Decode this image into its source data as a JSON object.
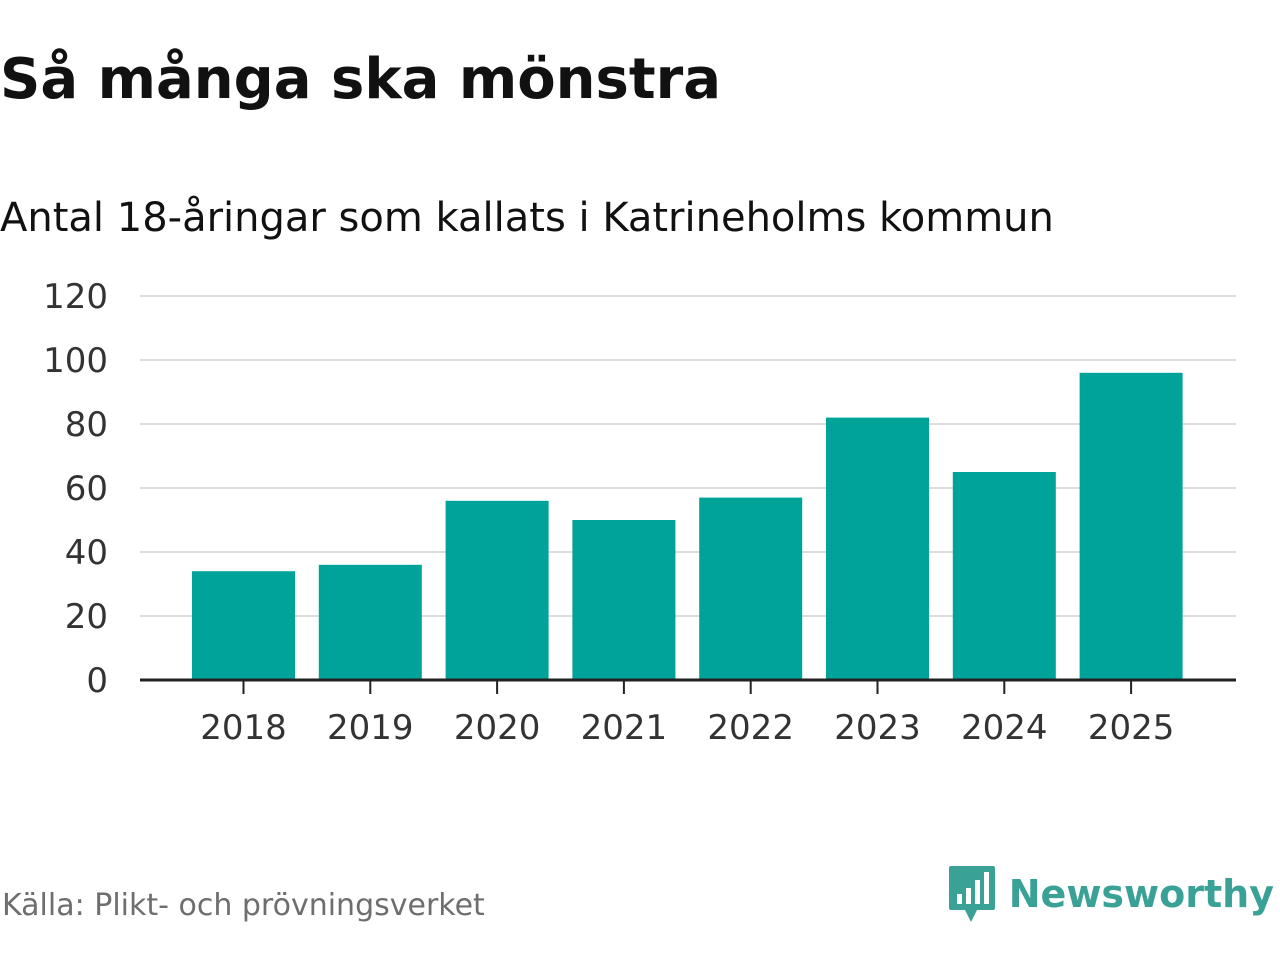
{
  "header": {
    "title": "Så många ska mönstra",
    "subtitle": "Antal 18-åringar som kallats i Katrineholms kommun"
  },
  "footer": {
    "source": "Källa: Plikt- och prövningsverket",
    "brand_name": "Newsworthy",
    "brand_icon": "newsworthy-logo-icon"
  },
  "colors": {
    "bar": "#00a39a",
    "brand": "#3aa197",
    "grid": "#dddddd",
    "axis": "#222222",
    "tick_text": "#333333"
  },
  "chart_data": {
    "type": "bar",
    "title": "Så många ska mönstra",
    "subtitle": "Antal 18-åringar som kallats i Katrineholms kommun",
    "xlabel": "",
    "ylabel": "",
    "categories": [
      "2018",
      "2019",
      "2020",
      "2021",
      "2022",
      "2023",
      "2024",
      "2025"
    ],
    "values": [
      34,
      36,
      56,
      50,
      57,
      82,
      65,
      96
    ],
    "ylim": [
      0,
      120
    ],
    "yticks": [
      0,
      20,
      40,
      60,
      80,
      100,
      120
    ],
    "grid": true,
    "legend": "none"
  }
}
